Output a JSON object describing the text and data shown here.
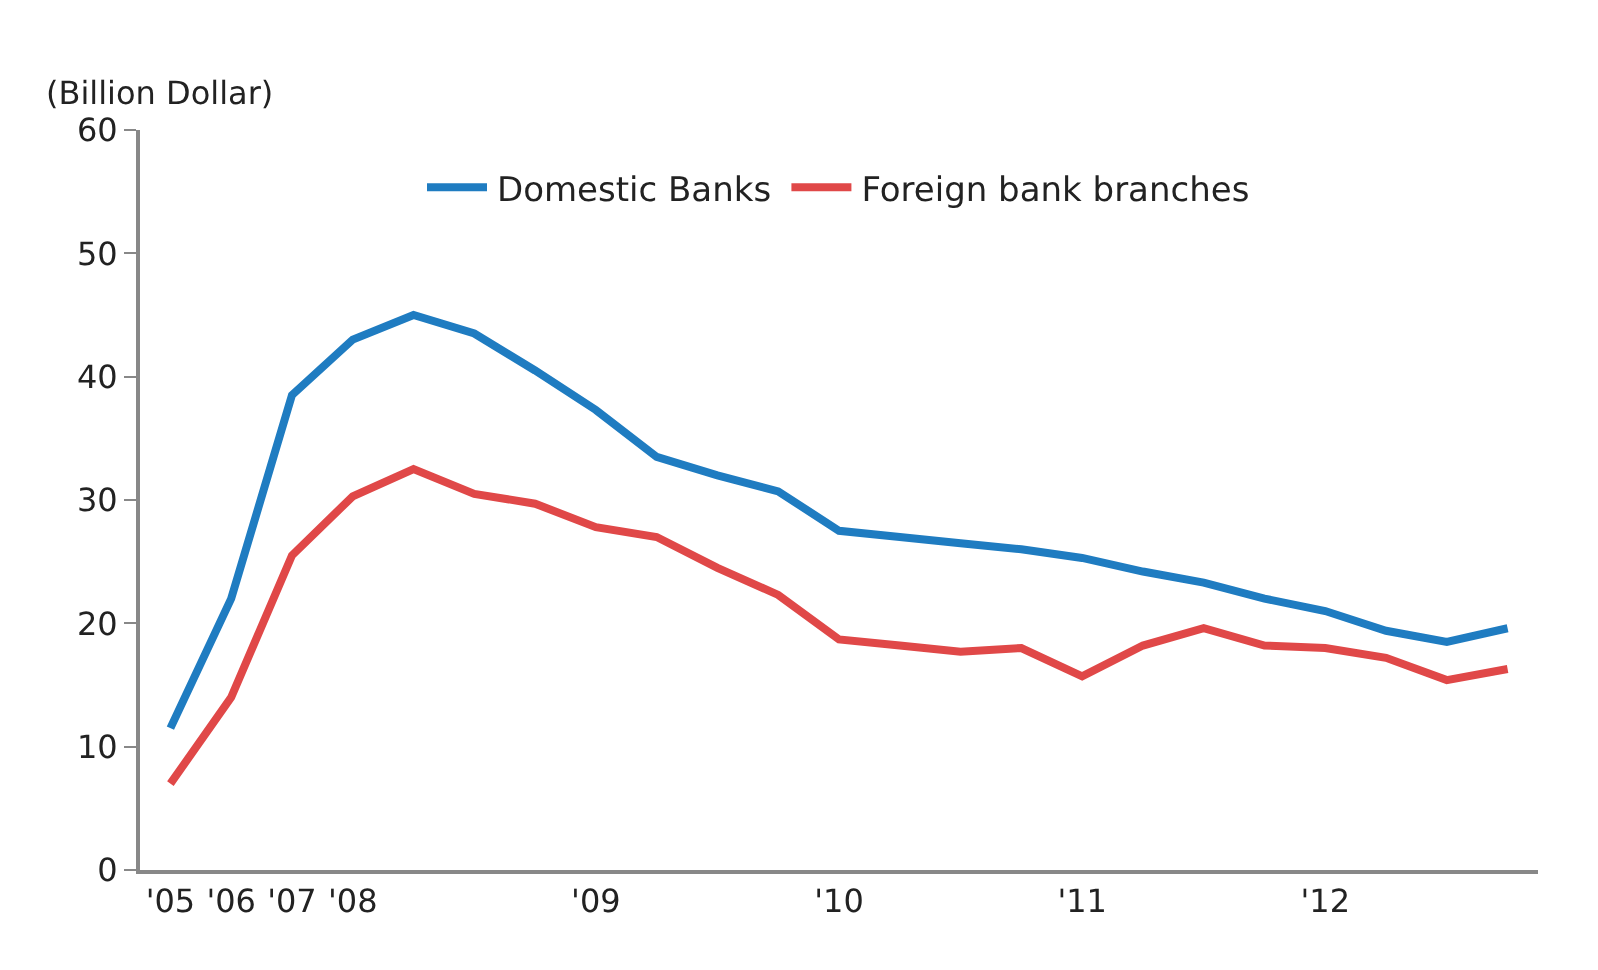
{
  "chart_data": {
    "type": "line",
    "ylabel": "(Billion Dollar)",
    "categories": [
      "'05",
      "'06",
      "'07",
      "'08",
      null,
      null,
      null,
      "'09",
      null,
      null,
      null,
      "'10",
      null,
      null,
      null,
      "'11",
      null,
      null,
      null,
      "'12",
      null,
      null,
      null
    ],
    "series": [
      {
        "name": "Domestic Banks",
        "color": "#1f7cc1",
        "values": [
          11.5,
          22,
          38.5,
          43,
          45,
          43.5,
          40.5,
          37.3,
          33.5,
          32,
          30.7,
          27.5,
          27,
          26.5,
          26,
          25.3,
          24.2,
          23.3,
          22,
          21,
          19.4,
          18.5,
          19.6
        ]
      },
      {
        "name": "Foreign bank branches",
        "color": "#e04848",
        "values": [
          7,
          14,
          25.5,
          30.3,
          32.5,
          30.5,
          29.7,
          27.8,
          27,
          24.5,
          22.3,
          18.7,
          18.2,
          17.7,
          18,
          15.7,
          18.2,
          19.6,
          18.2,
          18,
          17.2,
          15.4,
          16.3
        ]
      }
    ],
    "ylim": [
      0,
      60
    ],
    "yticks": [
      0,
      10,
      20,
      30,
      40,
      50,
      60
    ],
    "legend": "top",
    "marker": "none",
    "line_style": "solid"
  }
}
